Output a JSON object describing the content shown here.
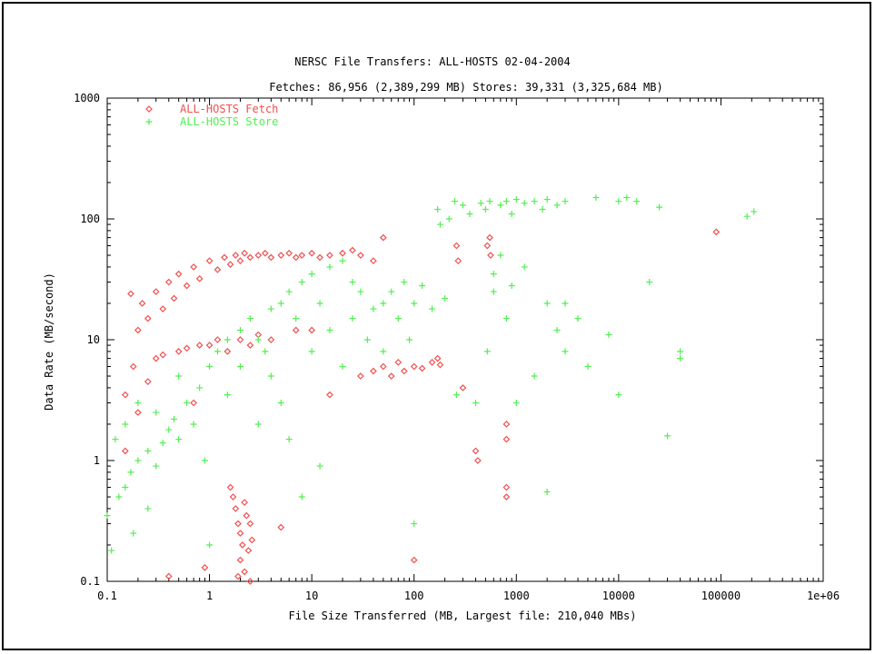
{
  "chart_data": {
    "type": "scatter",
    "title": "NERSC File Transfers: ALL-HOSTS 02-04-2004",
    "subtitle": "Fetches: 86,956 (2,389,299 MB) Stores: 39,331 (3,325,684 MB)",
    "xlabel": "File Size Transferred (MB, Largest file: 210,040 MBs)",
    "ylabel": "Data Rate (MB/second)",
    "x_scale": "log",
    "y_scale": "log",
    "xlim": [
      0.1,
      1000000
    ],
    "ylim": [
      0.1,
      1000
    ],
    "x_ticks": [
      {
        "value": 0.1,
        "label": "0.1"
      },
      {
        "value": 1,
        "label": "1"
      },
      {
        "value": 10,
        "label": "10"
      },
      {
        "value": 100,
        "label": "100"
      },
      {
        "value": 1000,
        "label": "1000"
      },
      {
        "value": 10000,
        "label": "10000"
      },
      {
        "value": 100000,
        "label": "100000"
      },
      {
        "value": 1000000,
        "label": "1e+06"
      }
    ],
    "y_ticks": [
      {
        "value": 0.1,
        "label": "0.1"
      },
      {
        "value": 1,
        "label": "1"
      },
      {
        "value": 10,
        "label": "10"
      },
      {
        "value": 100,
        "label": "100"
      },
      {
        "value": 1000,
        "label": "1000"
      }
    ],
    "grid": false,
    "legend_position": "top-left",
    "series": [
      {
        "name": "ALL-HOSTS Fetch",
        "color": "#f05050",
        "marker": "diamond",
        "points": [
          [
            0.15,
            3.5
          ],
          [
            0.15,
            1.2
          ],
          [
            0.17,
            24
          ],
          [
            0.18,
            6.0
          ],
          [
            0.2,
            12
          ],
          [
            0.2,
            2.5
          ],
          [
            0.22,
            20
          ],
          [
            0.25,
            15
          ],
          [
            0.25,
            4.5
          ],
          [
            0.3,
            25
          ],
          [
            0.3,
            7.0
          ],
          [
            0.35,
            18
          ],
          [
            0.35,
            7.5
          ],
          [
            0.4,
            30
          ],
          [
            0.4,
            0.11
          ],
          [
            0.45,
            22
          ],
          [
            0.5,
            8.0
          ],
          [
            0.5,
            35
          ],
          [
            0.6,
            28
          ],
          [
            0.6,
            8.5
          ],
          [
            0.7,
            40
          ],
          [
            0.7,
            3.0
          ],
          [
            0.8,
            32
          ],
          [
            0.8,
            9.0
          ],
          [
            0.9,
            0.13
          ],
          [
            1.0,
            45
          ],
          [
            1.0,
            9.0
          ],
          [
            1.2,
            38
          ],
          [
            1.2,
            10
          ],
          [
            1.4,
            48
          ],
          [
            1.5,
            8.0
          ],
          [
            1.6,
            42
          ],
          [
            1.8,
            50
          ],
          [
            2.0,
            45
          ],
          [
            2.0,
            10
          ],
          [
            2.2,
            52
          ],
          [
            2.5,
            48
          ],
          [
            2.5,
            9.0
          ],
          [
            3.0,
            50
          ],
          [
            3.0,
            11
          ],
          [
            3.5,
            52
          ],
          [
            4.0,
            48
          ],
          [
            4.0,
            10
          ],
          [
            5.0,
            50
          ],
          [
            5.0,
            0.28
          ],
          [
            6.0,
            52
          ],
          [
            7.0,
            48
          ],
          [
            7.0,
            12
          ],
          [
            8.0,
            50
          ],
          [
            10,
            52
          ],
          [
            10,
            12
          ],
          [
            12,
            48
          ],
          [
            15,
            50
          ],
          [
            15,
            3.5
          ],
          [
            20,
            52
          ],
          [
            25,
            55
          ],
          [
            30,
            50
          ],
          [
            30,
            5.0
          ],
          [
            40,
            45
          ],
          [
            40,
            5.5
          ],
          [
            50,
            6.0
          ],
          [
            50,
            70
          ],
          [
            60,
            5.0
          ],
          [
            70,
            6.5
          ],
          [
            80,
            5.5
          ],
          [
            100,
            6.0
          ],
          [
            100,
            0.15
          ],
          [
            120,
            5.8
          ],
          [
            150,
            6.5
          ],
          [
            170,
            7.0
          ],
          [
            180,
            6.2
          ],
          [
            260,
            60
          ],
          [
            270,
            45
          ],
          [
            300,
            4.0
          ],
          [
            400,
            1.2
          ],
          [
            420,
            1.0
          ],
          [
            520,
            60
          ],
          [
            550,
            70
          ],
          [
            560,
            50
          ],
          [
            800,
            0.5
          ],
          [
            800,
            0.6
          ],
          [
            800,
            1.5
          ],
          [
            800,
            2.0
          ],
          [
            90000,
            78
          ],
          [
            1.6,
            0.6
          ],
          [
            1.7,
            0.5
          ],
          [
            1.8,
            0.4
          ],
          [
            1.9,
            0.3
          ],
          [
            2.0,
            0.25
          ],
          [
            2.0,
            0.15
          ],
          [
            2.1,
            0.2
          ],
          [
            2.2,
            0.12
          ],
          [
            2.3,
            0.35
          ],
          [
            2.4,
            0.18
          ],
          [
            2.5,
            0.3
          ],
          [
            2.5,
            0.1
          ],
          [
            2.6,
            0.22
          ],
          [
            1.9,
            0.11
          ],
          [
            2.2,
            0.45
          ]
        ]
      },
      {
        "name": "ALL-HOSTS Store",
        "color": "#50f050",
        "marker": "plus",
        "points": [
          [
            0.1,
            0.35
          ],
          [
            0.11,
            0.18
          ],
          [
            0.12,
            1.5
          ],
          [
            0.13,
            0.5
          ],
          [
            0.15,
            2.0
          ],
          [
            0.15,
            0.6
          ],
          [
            0.17,
            0.8
          ],
          [
            0.18,
            0.25
          ],
          [
            0.2,
            1.0
          ],
          [
            0.2,
            3.0
          ],
          [
            0.25,
            1.2
          ],
          [
            0.25,
            0.4
          ],
          [
            0.3,
            2.5
          ],
          [
            0.3,
            0.9
          ],
          [
            0.35,
            1.4
          ],
          [
            0.4,
            1.8
          ],
          [
            0.45,
            2.2
          ],
          [
            0.5,
            1.5
          ],
          [
            0.5,
            5.0
          ],
          [
            0.6,
            3.0
          ],
          [
            0.7,
            2.0
          ],
          [
            0.8,
            4.0
          ],
          [
            0.9,
            1.0
          ],
          [
            1.0,
            6.0
          ],
          [
            1.0,
            0.2
          ],
          [
            1.2,
            8.0
          ],
          [
            1.5,
            10
          ],
          [
            1.5,
            3.5
          ],
          [
            2.0,
            12
          ],
          [
            2.0,
            6.0
          ],
          [
            2.5,
            15
          ],
          [
            3.0,
            10
          ],
          [
            3.0,
            2.0
          ],
          [
            3.5,
            8.0
          ],
          [
            4.0,
            18
          ],
          [
            4.0,
            5.0
          ],
          [
            5.0,
            20
          ],
          [
            5.0,
            3.0
          ],
          [
            6.0,
            25
          ],
          [
            6.0,
            1.5
          ],
          [
            7.0,
            15
          ],
          [
            8.0,
            30
          ],
          [
            8.0,
            0.5
          ],
          [
            10,
            35
          ],
          [
            10,
            8.0
          ],
          [
            12,
            20
          ],
          [
            12,
            0.9
          ],
          [
            15,
            40
          ],
          [
            15,
            12
          ],
          [
            20,
            45
          ],
          [
            20,
            6.0
          ],
          [
            25,
            30
          ],
          [
            25,
            15
          ],
          [
            30,
            25
          ],
          [
            35,
            10
          ],
          [
            40,
            18
          ],
          [
            50,
            20
          ],
          [
            50,
            8.0
          ],
          [
            60,
            25
          ],
          [
            70,
            15
          ],
          [
            80,
            30
          ],
          [
            90,
            10
          ],
          [
            100,
            20
          ],
          [
            100,
            0.3
          ],
          [
            120,
            28
          ],
          [
            150,
            18
          ],
          [
            170,
            120
          ],
          [
            180,
            90
          ],
          [
            200,
            22
          ],
          [
            220,
            100
          ],
          [
            250,
            140
          ],
          [
            260,
            3.5
          ],
          [
            300,
            130
          ],
          [
            350,
            110
          ],
          [
            400,
            3.0
          ],
          [
            450,
            135
          ],
          [
            500,
            120
          ],
          [
            520,
            8.0
          ],
          [
            550,
            140
          ],
          [
            600,
            25
          ],
          [
            700,
            130
          ],
          [
            800,
            140
          ],
          [
            900,
            110
          ],
          [
            1000,
            145
          ],
          [
            1000,
            3.0
          ],
          [
            1200,
            135
          ],
          [
            1500,
            140
          ],
          [
            1800,
            120
          ],
          [
            2000,
            145
          ],
          [
            2000,
            0.55
          ],
          [
            2500,
            130
          ],
          [
            3000,
            140
          ],
          [
            1500,
            5.0
          ],
          [
            2000,
            20
          ],
          [
            2500,
            12
          ],
          [
            3000,
            8.0
          ],
          [
            4000,
            15
          ],
          [
            5000,
            6.0
          ],
          [
            6000,
            150
          ],
          [
            8000,
            11
          ],
          [
            10000,
            140
          ],
          [
            10000,
            3.5
          ],
          [
            12000,
            150
          ],
          [
            15000,
            140
          ],
          [
            20000,
            30
          ],
          [
            25000,
            125
          ],
          [
            30000,
            1.6
          ],
          [
            40000,
            7.0
          ],
          [
            40000,
            8.0
          ],
          [
            180000,
            105
          ],
          [
            210040,
            115
          ],
          [
            800,
            15
          ],
          [
            1200,
            40
          ],
          [
            700,
            50
          ],
          [
            3000,
            20
          ],
          [
            600,
            35
          ],
          [
            900,
            28
          ]
        ]
      }
    ]
  }
}
